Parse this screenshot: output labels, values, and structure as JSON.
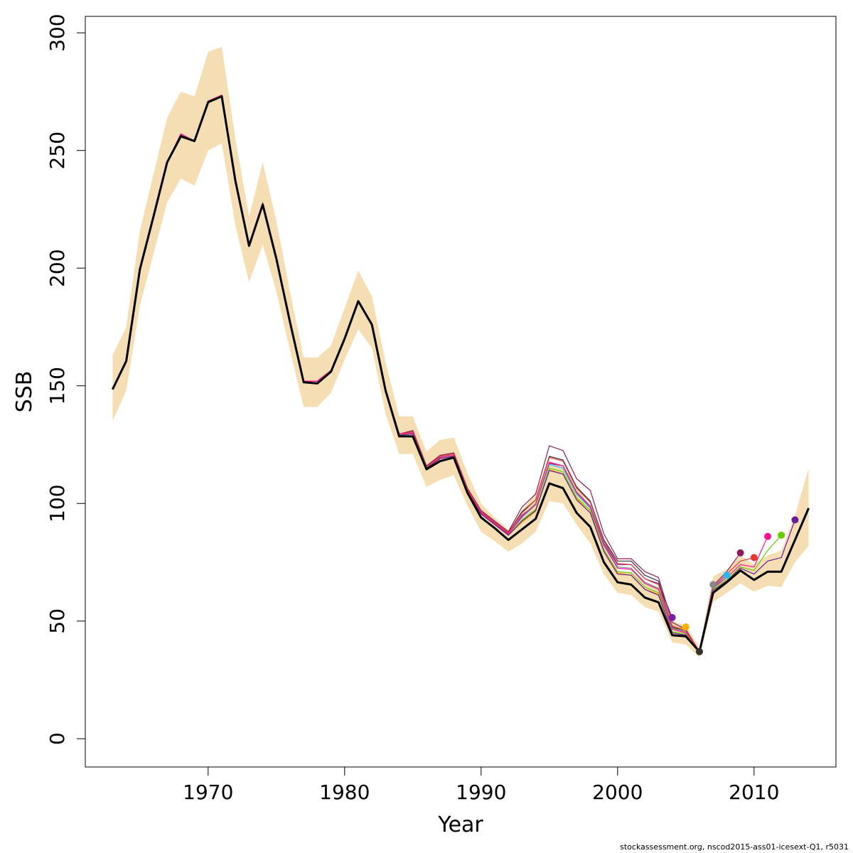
{
  "chart_data": {
    "type": "line",
    "title": "",
    "xlabel": "Year",
    "ylabel": "SSB",
    "xlim": [
      1961,
      2016
    ],
    "ylim": [
      -12,
      307
    ],
    "xticks": [
      1970,
      1980,
      1990,
      2000,
      2010
    ],
    "yticks": [
      0,
      50,
      100,
      150,
      200,
      250,
      300
    ],
    "confidence_band": {
      "color": "#f5deb3",
      "x": [
        1963,
        1964,
        1965,
        1966,
        1967,
        1968,
        1969,
        1970,
        1971,
        1972,
        1973,
        1974,
        1975,
        1976,
        1977,
        1978,
        1979,
        1980,
        1981,
        1982,
        1983,
        1984,
        1985,
        1986,
        1987,
        1988,
        1989,
        1990,
        1991,
        1992,
        1993,
        1994,
        1995,
        1996,
        1997,
        1998,
        1999,
        2000,
        2001,
        2002,
        2003,
        2004,
        2005,
        2006,
        2007,
        2008,
        2009,
        2010,
        2011,
        2012,
        2013,
        2014
      ],
      "lower": [
        135,
        148,
        184,
        206,
        228,
        238,
        235,
        250,
        253,
        218,
        194,
        210,
        190,
        165,
        141,
        141,
        147,
        161,
        174,
        166,
        138,
        121,
        121,
        107,
        110,
        112,
        99,
        88,
        84,
        79.5,
        83,
        88,
        101,
        100,
        91,
        83,
        70,
        62,
        61,
        56,
        54,
        41,
        40,
        34.5,
        58,
        62,
        66,
        62.5,
        65,
        64.5,
        75,
        82
      ],
      "upper": [
        163,
        175,
        216,
        240,
        264,
        275,
        273,
        292,
        294,
        255,
        222,
        245,
        220,
        190,
        162,
        162,
        167,
        183,
        199,
        188,
        160,
        137,
        137,
        122,
        127,
        128,
        113,
        100,
        94,
        89,
        97,
        105,
        118,
        116,
        108,
        98,
        81,
        71,
        71,
        66,
        64,
        50,
        48,
        39,
        69,
        72,
        78,
        74,
        78,
        80,
        95,
        115
      ]
    },
    "final_series": {
      "name": "",
      "color": "#000000",
      "x": [
        1963,
        1964,
        1965,
        1966,
        1967,
        1968,
        1969,
        1970,
        1971,
        1972,
        1973,
        1974,
        1975,
        1976,
        1977,
        1978,
        1979,
        1980,
        1981,
        1982,
        1983,
        1984,
        1985,
        1986,
        1987,
        1988,
        1989,
        1990,
        1991,
        1992,
        1993,
        1994,
        1995,
        1996,
        1997,
        1998,
        1999,
        2000,
        2001,
        2002,
        2003,
        2004,
        2005,
        2006,
        2007,
        2008,
        2009,
        2010,
        2011,
        2012,
        2013,
        2014
      ],
      "y": [
        148.5,
        160.5,
        199.5,
        222,
        245,
        256,
        254,
        270.5,
        273,
        237,
        209.5,
        227,
        204,
        177,
        151.5,
        151,
        156,
        170,
        186,
        176,
        148,
        128.5,
        128.5,
        114.5,
        118,
        119.5,
        104.5,
        94,
        89.5,
        84.5,
        89,
        93.5,
        108.5,
        106.5,
        96,
        90,
        75,
        66.5,
        65.5,
        60,
        58,
        44,
        43.5,
        37,
        62,
        66.5,
        71.5,
        67.5,
        71,
        71,
        84.5,
        98
      ]
    },
    "retrospective_series": [
      {
        "color": "#7b1fa2",
        "terminal": [
          2004,
          51.5
        ],
        "y": [
          148.5,
          160.5,
          199.5,
          222,
          245,
          257,
          254,
          271,
          273.5,
          237,
          210,
          227.5,
          204,
          177,
          152,
          152,
          156.5,
          170.5,
          186,
          176.5,
          148.5,
          129.5,
          130,
          115,
          119.5,
          120.5,
          105.5,
          96.5,
          92,
          87,
          95,
          99.5,
          117,
          116,
          104.5,
          99,
          83,
          74,
          74,
          68,
          66,
          51.5
        ]
      },
      {
        "color": "#ffb300",
        "terminal": [
          2005,
          47.5
        ],
        "y": [
          148.5,
          160.5,
          199.5,
          222,
          245,
          256.5,
          254,
          270.5,
          273,
          237,
          209.5,
          227,
          204,
          177,
          151.5,
          151,
          156,
          170,
          186,
          176,
          148,
          129,
          129.5,
          115,
          119,
          120,
          105,
          95.5,
          91,
          86.5,
          92,
          96.5,
          114.5,
          112.5,
          102,
          96,
          80,
          70.5,
          69.5,
          63.5,
          61.5,
          46.5,
          47.5
        ]
      },
      {
        "color": "#333333",
        "terminal": [
          2006,
          37
        ],
        "y": [
          148.5,
          160.5,
          199.5,
          222,
          245,
          257,
          254,
          271,
          273.5,
          237,
          210,
          227.5,
          204,
          177,
          152,
          152,
          156.5,
          170.5,
          186,
          176.5,
          148.5,
          129.5,
          130.5,
          115.5,
          120,
          121,
          106,
          96.5,
          92,
          87.5,
          96.5,
          101.5,
          120,
          118.5,
          107,
          101,
          84.5,
          75.5,
          75.5,
          69.5,
          67,
          47.5,
          45.5,
          37
        ]
      },
      {
        "color": "#888888",
        "terminal": [
          2007,
          65.5
        ],
        "y": [
          148.5,
          160.5,
          199.5,
          222,
          245,
          257,
          254,
          271,
          273.5,
          237,
          210,
          227.5,
          204,
          177,
          152,
          152,
          156.5,
          170.5,
          186,
          176.5,
          148.5,
          129.5,
          130,
          115,
          119.5,
          120.5,
          105.5,
          96,
          91.5,
          87,
          94.5,
          100,
          117.5,
          116,
          105,
          99,
          82.5,
          73,
          72.5,
          66.5,
          64,
          47,
          45.5,
          37,
          65.5
        ]
      },
      {
        "color": "#29b6f6",
        "terminal": [
          2008,
          69.5
        ],
        "y": [
          148.5,
          160.5,
          199.5,
          222,
          245,
          257,
          254,
          271,
          273.5,
          237,
          210,
          227.5,
          204,
          177,
          152,
          152,
          156.5,
          170.5,
          186,
          176.5,
          148.5,
          129.5,
          130.5,
          115,
          119.5,
          120.5,
          105.5,
          96,
          91.5,
          87,
          94,
          99.5,
          116.5,
          115,
          104,
          98,
          82,
          72.5,
          72,
          66,
          63.5,
          46.5,
          45,
          37,
          64,
          69.5
        ]
      },
      {
        "color": "#8e1b5e",
        "terminal": [
          2009,
          79
        ],
        "y": [
          148.5,
          160.5,
          199.5,
          222,
          245,
          257,
          254,
          271,
          273.5,
          237,
          210,
          227.5,
          204,
          177,
          152,
          152,
          156.5,
          170.5,
          186,
          176.5,
          148.5,
          129.5,
          131,
          116,
          120.5,
          121.5,
          106.5,
          97,
          92.5,
          88,
          98.5,
          104,
          124.5,
          122.5,
          110.5,
          105.5,
          87,
          76.5,
          76.5,
          71,
          68.5,
          49.5,
          46.5,
          37,
          65,
          71,
          79
        ]
      },
      {
        "color": "#e53935",
        "terminal": [
          2010,
          77
        ],
        "y": [
          148.5,
          160.5,
          199.5,
          222,
          245,
          257,
          254,
          271,
          273.5,
          237,
          210,
          227.5,
          204,
          177,
          152,
          152,
          156.5,
          170.5,
          186,
          176.5,
          148.5,
          129.5,
          130.5,
          115.5,
          120,
          121,
          106,
          96.5,
          92,
          87.5,
          96,
          101.5,
          119.5,
          118,
          106.5,
          100.5,
          84,
          74.5,
          74,
          68,
          65.5,
          48,
          46,
          37,
          64.5,
          70,
          75.5,
          77
        ]
      },
      {
        "color": "#ff1493",
        "terminal": [
          2011,
          86
        ],
        "y": [
          148.5,
          160.5,
          199.5,
          222,
          245,
          257,
          254,
          271,
          273.5,
          237,
          210,
          227.5,
          204,
          177,
          152,
          152,
          156.5,
          170.5,
          186,
          176.5,
          148.5,
          129.5,
          130,
          115,
          119.5,
          120.5,
          105.5,
          96,
          91.5,
          87,
          94.5,
          99.5,
          117.5,
          116,
          104.5,
          98.5,
          82,
          72.5,
          72,
          66,
          63.5,
          46.5,
          45,
          37,
          64,
          68.5,
          74,
          73,
          86
        ]
      },
      {
        "color": "#66cc00",
        "terminal": [
          2012,
          86.5
        ],
        "y": [
          148.5,
          160.5,
          199.5,
          222,
          245,
          256.5,
          254,
          270.5,
          273,
          237,
          209.5,
          227,
          204,
          177,
          151.5,
          151,
          156,
          170,
          186,
          176,
          148,
          129,
          129.5,
          115,
          119,
          120,
          105,
          95.5,
          91,
          86.5,
          93,
          97.5,
          115,
          113.5,
          102.5,
          97,
          80.5,
          71,
          70.5,
          64.5,
          62,
          45.5,
          44.5,
          37,
          63.5,
          67.5,
          73,
          71.5,
          80,
          86.5
        ]
      },
      {
        "color": "#6a1b9a",
        "terminal": [
          2013,
          93
        ],
        "y": [
          148.5,
          160.5,
          199.5,
          222,
          245,
          256.5,
          254,
          270.5,
          273,
          237,
          209.5,
          227,
          204,
          177,
          151.5,
          151,
          156,
          170,
          186,
          176,
          148,
          129,
          129.5,
          115,
          119,
          120,
          105,
          95.5,
          91,
          86.5,
          92.5,
          97,
          114,
          112.5,
          101.5,
          96,
          79.5,
          70,
          69.5,
          63.5,
          61,
          45,
          44,
          37,
          63,
          67,
          72.5,
          70,
          75.5,
          77,
          93
        ]
      }
    ]
  },
  "footer": {
    "note": "stockassessment.org, nscod2015-ass01-icesext-Q1, r5031"
  }
}
